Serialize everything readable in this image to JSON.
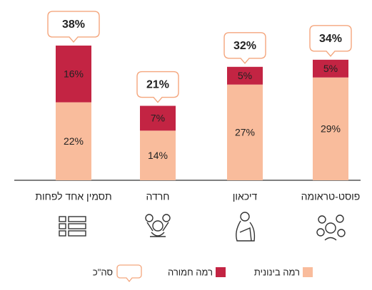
{
  "chart_data": {
    "type": "stacked_bar",
    "categories": [
      "תסמין אחד לפחות",
      "חרדה",
      "דיכאון",
      "פוסט-טראומה"
    ],
    "series": [
      {
        "name": "רמה בינונית",
        "color": "#f9bc9c",
        "values": [
          22,
          14,
          27,
          29
        ],
        "value_labels": [
          "22%",
          "14%",
          "27%",
          "29%"
        ]
      },
      {
        "name": "רמה חמורה",
        "color": "#c32443",
        "values": [
          16,
          7,
          5,
          5
        ],
        "value_labels": [
          "16%",
          "7%",
          "5%",
          "5%"
        ]
      }
    ],
    "totals": {
      "name": "סה\"כ",
      "values": [
        38,
        21,
        32,
        34
      ],
      "value_labels": [
        "38%",
        "21%",
        "32%",
        "34%"
      ]
    },
    "ylim": [
      0,
      40
    ]
  }
}
